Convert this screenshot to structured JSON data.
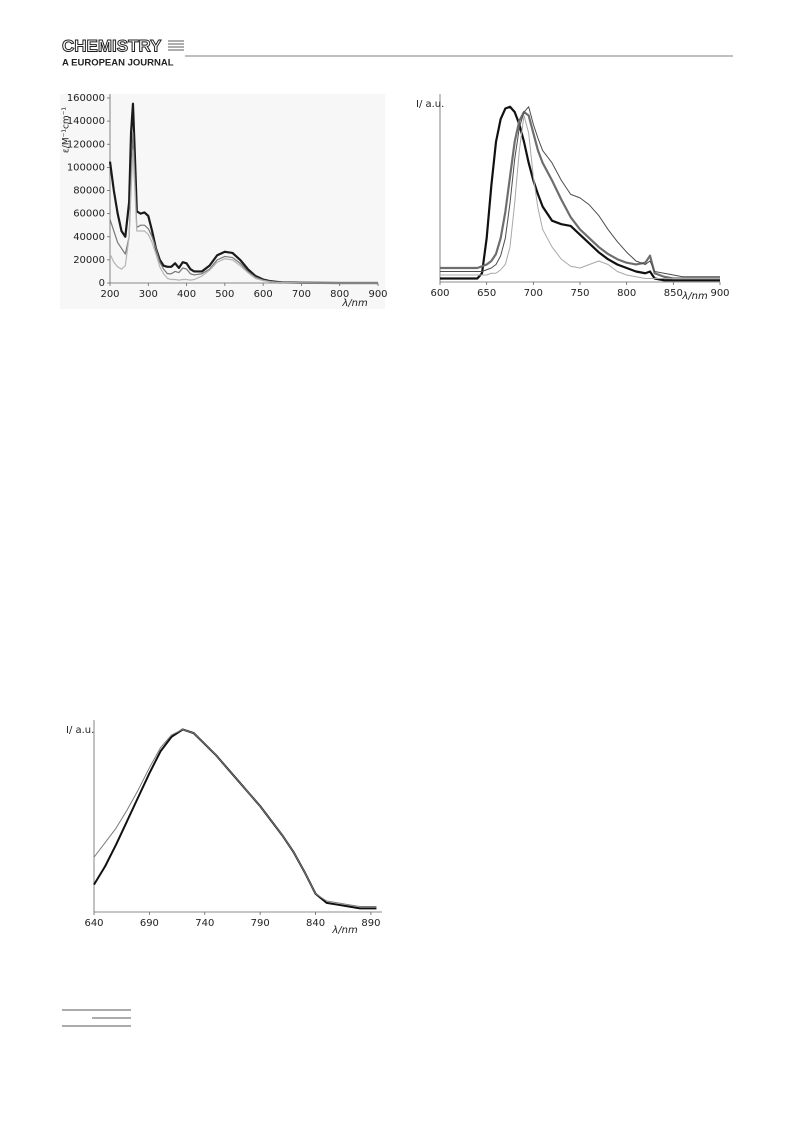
{
  "header": {
    "journal": "CHEMISTRY",
    "subtitle": "A EUROPEAN JOURNAL"
  },
  "chart_data": [
    {
      "type": "line",
      "x_label": "λ/nm",
      "y_label": "ε/M⁻¹cm⁻¹",
      "x": [
        200,
        210,
        220,
        230,
        240,
        250,
        255,
        260,
        265,
        270,
        280,
        290,
        300,
        310,
        320,
        330,
        340,
        350,
        360,
        370,
        380,
        390,
        400,
        410,
        420,
        440,
        460,
        480,
        500,
        520,
        540,
        560,
        580,
        600,
        620,
        650,
        700,
        750,
        800,
        850,
        900
      ],
      "series": [
        {
          "color": "#1a1a1a",
          "line_width": 2.2,
          "values": [
            105000,
            80000,
            60000,
            45000,
            40000,
            70000,
            130000,
            155000,
            110000,
            62000,
            60000,
            61000,
            58000,
            45000,
            30000,
            20000,
            15000,
            14000,
            14000,
            17000,
            13000,
            18000,
            17000,
            12000,
            10000,
            10000,
            15000,
            24000,
            27000,
            26000,
            20000,
            12000,
            6000,
            3000,
            1500,
            500,
            200,
            100,
            0,
            0,
            0
          ]
        },
        {
          "color": "#777777",
          "line_width": 1.2,
          "values": [
            55000,
            45000,
            35000,
            30000,
            25000,
            40000,
            90000,
            130000,
            90000,
            48000,
            50000,
            50000,
            47000,
            40000,
            30000,
            18000,
            12000,
            8000,
            8000,
            10000,
            9000,
            13000,
            12000,
            8000,
            7000,
            8000,
            12000,
            20000,
            23000,
            22000,
            17000,
            10000,
            5000,
            2500,
            1200,
            400,
            100,
            0,
            0,
            0,
            0
          ]
        },
        {
          "color": "#b5b5b5",
          "line_width": 1.2,
          "values": [
            25000,
            18000,
            14000,
            12000,
            15000,
            40000,
            80000,
            115000,
            80000,
            45000,
            45000,
            45000,
            42000,
            35000,
            25000,
            14000,
            8000,
            4000,
            3000,
            3000,
            2500,
            3000,
            3000,
            2500,
            3000,
            6000,
            11000,
            18000,
            21000,
            20000,
            15000,
            9000,
            4000,
            2000,
            1000,
            300,
            100,
            0,
            0,
            0,
            0
          ]
        }
      ],
      "xlim": [
        200,
        900
      ],
      "ylim": [
        0,
        160000
      ],
      "xticks": [
        200,
        300,
        400,
        500,
        600,
        700,
        800,
        900
      ],
      "yticks": [
        0,
        20000,
        40000,
        60000,
        80000,
        100000,
        120000,
        140000,
        160000
      ]
    },
    {
      "type": "line",
      "x_label": "λ/nm",
      "y_label": "I/ a.u.",
      "x": [
        600,
        610,
        620,
        630,
        640,
        645,
        650,
        655,
        660,
        665,
        670,
        675,
        680,
        685,
        690,
        695,
        700,
        705,
        710,
        720,
        730,
        740,
        750,
        760,
        770,
        780,
        790,
        800,
        810,
        820,
        825,
        830,
        840,
        850,
        860,
        870,
        880,
        890,
        900
      ],
      "series": [
        {
          "color": "#111111",
          "line_width": 2.2,
          "values": [
            0.02,
            0.02,
            0.02,
            0.02,
            0.02,
            0.05,
            0.25,
            0.55,
            0.8,
            0.93,
            0.99,
            1.0,
            0.97,
            0.9,
            0.8,
            0.68,
            0.58,
            0.5,
            0.43,
            0.35,
            0.33,
            0.32,
            0.27,
            0.22,
            0.17,
            0.13,
            0.1,
            0.08,
            0.06,
            0.05,
            0.06,
            0.02,
            0.01,
            0.01,
            0.01,
            0.01,
            0.01,
            0.01,
            0.01
          ]
        },
        {
          "color": "#6e6e6e",
          "line_width": 2.2,
          "values": [
            0.08,
            0.08,
            0.08,
            0.08,
            0.08,
            0.09,
            0.1,
            0.12,
            0.16,
            0.25,
            0.4,
            0.6,
            0.8,
            0.92,
            0.97,
            0.95,
            0.85,
            0.75,
            0.68,
            0.58,
            0.47,
            0.37,
            0.3,
            0.25,
            0.2,
            0.16,
            0.13,
            0.11,
            0.1,
            0.11,
            0.15,
            0.05,
            0.03,
            0.02,
            0.02,
            0.02,
            0.02,
            0.02,
            0.02
          ]
        },
        {
          "color": "#4d4d4d",
          "line_width": 1,
          "values": [
            0.06,
            0.06,
            0.06,
            0.06,
            0.06,
            0.06,
            0.07,
            0.08,
            0.1,
            0.15,
            0.25,
            0.45,
            0.7,
            0.88,
            0.97,
            1.0,
            0.9,
            0.82,
            0.75,
            0.68,
            0.58,
            0.5,
            0.48,
            0.44,
            0.38,
            0.3,
            0.23,
            0.17,
            0.12,
            0.1,
            0.12,
            0.06,
            0.05,
            0.04,
            0.03,
            0.03,
            0.03,
            0.03,
            0.03
          ]
        },
        {
          "color": "#a8a8a8",
          "line_width": 1,
          "values": [
            0.04,
            0.04,
            0.04,
            0.04,
            0.04,
            0.04,
            0.04,
            0.05,
            0.05,
            0.07,
            0.1,
            0.2,
            0.45,
            0.75,
            0.95,
            0.85,
            0.6,
            0.42,
            0.3,
            0.2,
            0.13,
            0.09,
            0.08,
            0.1,
            0.12,
            0.1,
            0.06,
            0.04,
            0.03,
            0.02,
            0.02,
            0.02,
            0.02,
            0.02,
            0.02,
            0.02,
            0.02,
            0.02,
            0.02
          ]
        }
      ],
      "xlim": [
        600,
        900
      ],
      "ylim": [
        0,
        1.05
      ],
      "xticks": [
        600,
        650,
        700,
        750,
        800,
        850,
        900
      ]
    },
    {
      "type": "line",
      "x_label": "λ/nm",
      "y_label": "I/ a.u.",
      "x": [
        640,
        650,
        660,
        670,
        680,
        690,
        700,
        710,
        720,
        730,
        740,
        750,
        760,
        770,
        780,
        790,
        800,
        810,
        820,
        830,
        840,
        850,
        860,
        870,
        880,
        890,
        895
      ],
      "series": [
        {
          "color": "#111111",
          "line_width": 2,
          "values": [
            0.15,
            0.25,
            0.37,
            0.5,
            0.63,
            0.76,
            0.88,
            0.96,
            1.0,
            0.98,
            0.92,
            0.86,
            0.79,
            0.72,
            0.65,
            0.58,
            0.5,
            0.42,
            0.33,
            0.22,
            0.1,
            0.05,
            0.04,
            0.03,
            0.02,
            0.02,
            0.02
          ]
        },
        {
          "color": "#7a7a7a",
          "line_width": 1,
          "values": [
            0.3,
            0.38,
            0.46,
            0.56,
            0.67,
            0.79,
            0.9,
            0.97,
            1.0,
            0.98,
            0.92,
            0.86,
            0.79,
            0.72,
            0.65,
            0.58,
            0.5,
            0.42,
            0.33,
            0.22,
            0.1,
            0.06,
            0.05,
            0.04,
            0.03,
            0.03,
            0.03
          ]
        }
      ],
      "xlim": [
        640,
        900
      ],
      "ylim": [
        0,
        1.03
      ],
      "xticks": [
        640,
        690,
        740,
        790,
        840,
        890
      ]
    }
  ]
}
